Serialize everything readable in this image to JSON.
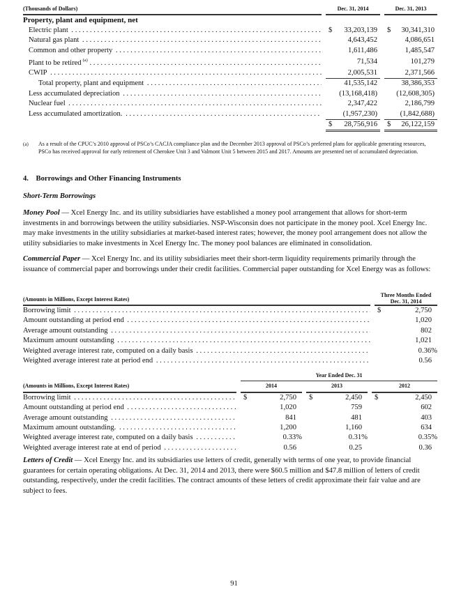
{
  "ppe": {
    "unit_header": "(Thousands of Dollars)",
    "col1": "Dec. 31, 2014",
    "col2": "Dec. 31, 2013",
    "section": "Property, plant and equipment, net",
    "rows": [
      {
        "label": "Electric plant",
        "v1": "33,203,139",
        "v2": "30,341,310",
        "dollar": "$"
      },
      {
        "label": "Natural gas plant",
        "v1": "4,643,452",
        "v2": "4,086,651"
      },
      {
        "label": "Common and other property",
        "v1": "1,611,486",
        "v2": "1,485,547"
      },
      {
        "label": "Plant to be retired",
        "sup": "(a)",
        "v1": "71,534",
        "v2": "101,279"
      },
      {
        "label": "CWIP",
        "v1": "2,005,531",
        "v2": "2,371,566"
      },
      {
        "label": "Total property, plant and equipment",
        "v1": "41,535,142",
        "v2": "38,386,353"
      },
      {
        "label": "Less accumulated depreciation",
        "v1": "(13,168,418)",
        "v2": "(12,608,305)"
      },
      {
        "label": "Nuclear fuel",
        "v1": "2,347,422",
        "v2": "2,186,799"
      },
      {
        "label": "Less accumulated amortization.",
        "v1": "(1,957,230)",
        "v2": "(1,842,688)"
      }
    ],
    "total": {
      "dollar": "$",
      "v1": "28,756,916",
      "v2": "26,122,159"
    },
    "footnote_mark": "(a)",
    "footnote": "As a result of the CPUC’s 2010 approval of PSCo’s CACJA compliance plan and the December 2013 approval of PSCo’s preferred plans for applicable generating resources, PSCo has received approval for early retirement of Cherokee Unit 3 and Valmont Unit 5 between 2015 and 2017.  Amounts are presented net of accumulated depreciation."
  },
  "section_heading": "4.    Borrowings and Other Financing Instruments",
  "subheading": "Short-Term Borrowings",
  "money_pool": {
    "lead": "Money Pool",
    "text": " — Xcel Energy Inc. and its utility subsidiaries have established a money pool arrangement that allows for short-term investments in and borrowings between the utility subsidiaries.  NSP-Wisconsin does not participate in the money pool.  Xcel Energy Inc. may make investments in the utility subsidiaries at market-based interest rates; however, the money pool arrangement does not allow the utility subsidiaries to make investments in Xcel Energy Inc.  The money pool balances are eliminated in consolidation."
  },
  "commercial_paper": {
    "lead": "Commercial Paper",
    "text": " — Xcel Energy Inc. and its utility subsidiaries meet their short-term liquidity requirements primarily through the issuance of commercial paper and borrowings under their credit facilities.  Commercial paper outstanding for Xcel Energy was as follows:"
  },
  "cp_quarter": {
    "unit_header": "(Amounts in Millions, Except Interest Rates)",
    "col_line1": "Three Months Ended",
    "col_line2": "Dec. 31, 2014",
    "rows": [
      {
        "label": "Borrowing limit",
        "v": "2,750",
        "dollar": "$"
      },
      {
        "label": "Amount outstanding at period end",
        "v": "1,020"
      },
      {
        "label": "Average amount outstanding",
        "v": "802"
      },
      {
        "label": "Maximum amount outstanding",
        "v": "1,021"
      },
      {
        "label": "Weighted average interest rate, computed on a daily basis",
        "v": "0.36%"
      },
      {
        "label": "Weighted average interest rate at period end",
        "v": "0.56"
      }
    ]
  },
  "cp_year": {
    "group_header": "Year Ended Dec. 31",
    "unit_header": "(Amounts in Millions, Except Interest Rates)",
    "cols": [
      "2014",
      "2013",
      "2012"
    ],
    "rows": [
      {
        "label": "Borrowing limit",
        "v": [
          "2,750",
          "2,450",
          "2,450"
        ],
        "dollar": "$"
      },
      {
        "label": "Amount outstanding at period end",
        "v": [
          "1,020",
          "759",
          "602"
        ]
      },
      {
        "label": "Average amount outstanding",
        "v": [
          "841",
          "481",
          "403"
        ]
      },
      {
        "label": "Maximum amount outstanding.",
        "v": [
          "1,200",
          "1,160",
          "634"
        ]
      },
      {
        "label": "Weighted average interest rate, computed on a daily basis",
        "v": [
          "0.33%",
          "0.31%",
          "0.35%"
        ]
      },
      {
        "label": "Weighted average interest rate at end of period",
        "v": [
          "0.56",
          "0.25",
          "0.36"
        ]
      }
    ]
  },
  "letters_of_credit": {
    "lead": "Letters of Credit",
    "text": " — Xcel Energy Inc. and its subsidiaries use letters of credit, generally with terms of one year, to provide financial guarantees for certain operating obligations.  At Dec. 31, 2014 and 2013, there were $60.5 million and $47.8 million of letters of credit outstanding, respectively, under the credit facilities.  The contract amounts of these letters of credit approximate their fair value and are subject to fees."
  },
  "page_number": "91"
}
